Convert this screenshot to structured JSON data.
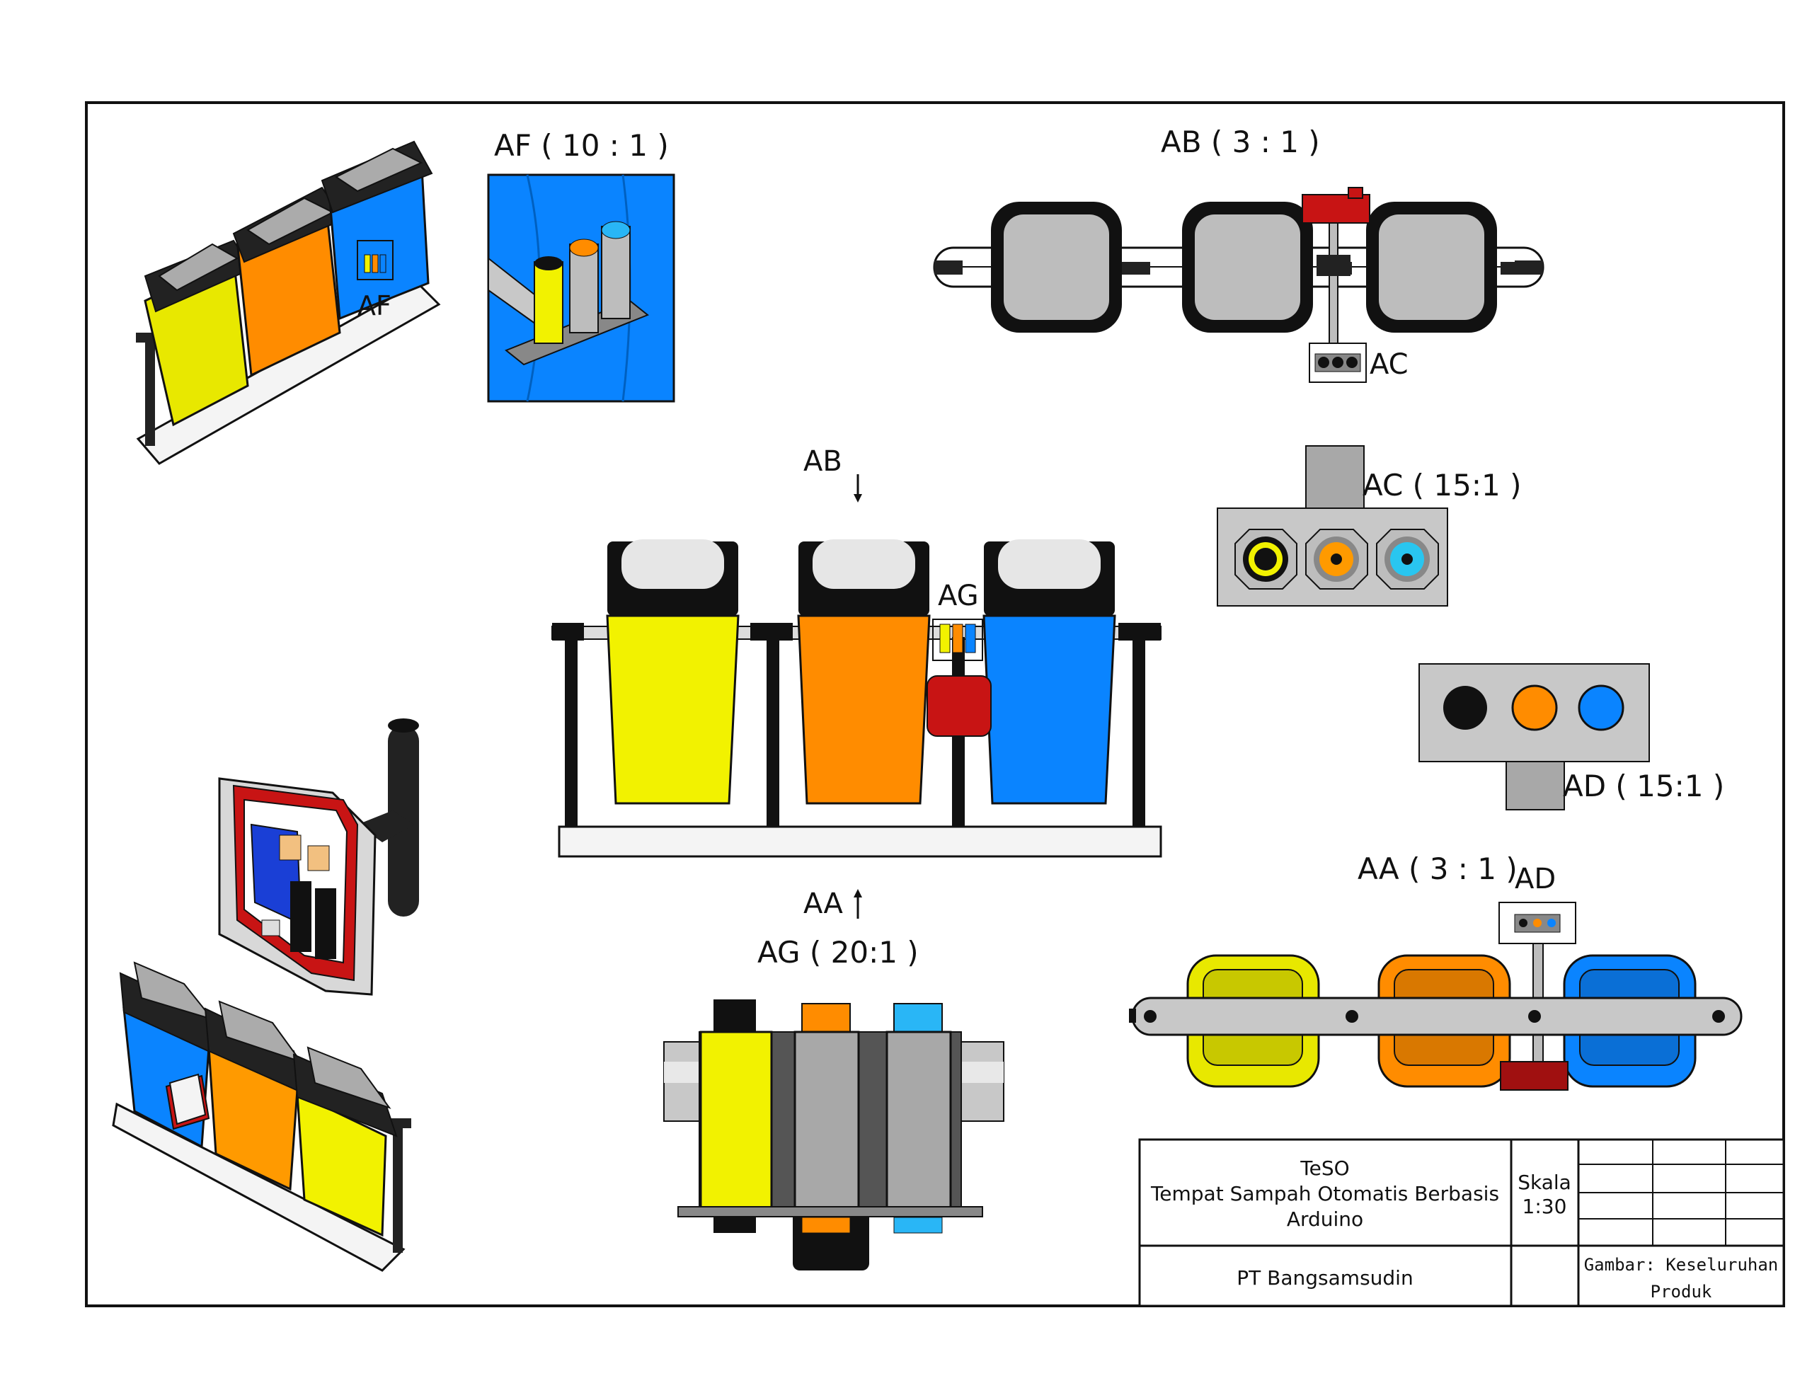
{
  "views": {
    "af_title": "AF ( 10 : 1 )",
    "ab_title": "AB ( 3 : 1 )",
    "ac_title": "AC ( 15:1 )",
    "ad_title": "AD ( 15:1 )",
    "aa_title": "AA ( 3 : 1 )",
    "ag_title": "AG ( 20:1 )"
  },
  "callouts": {
    "af": "AF",
    "ac": "AC",
    "ab": "AB",
    "ag": "AG",
    "aa": "AA",
    "ad": "AD"
  },
  "colors": {
    "yellow": "#f2f200",
    "orange": "#ff8c00",
    "blue": "#0a84ff",
    "red": "#c81414",
    "gray": "#bdbdbd",
    "black": "#111111"
  },
  "title_block": {
    "project": "TeSO",
    "project_desc_line1": "Tempat Sampah Otomatis Berbasis",
    "project_desc_line2": "Arduino",
    "scale_label": "Skala",
    "scale_value": "1:30",
    "company": "PT Bangsamsudin",
    "drawing_line1": "Gambar: Keseluruhan",
    "drawing_line2": "Produk"
  }
}
